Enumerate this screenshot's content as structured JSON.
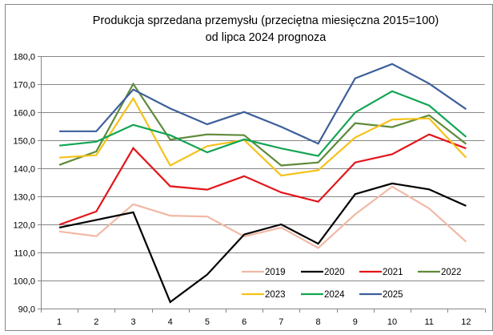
{
  "chart_data": {
    "type": "line",
    "title": "Produkcja sprzedana przemysłu (przeciętna miesięczna 2015=100)",
    "subtitle": "od lipca 2024 prognoza",
    "xlabel": "",
    "ylabel": "",
    "categories": [
      "1",
      "2",
      "3",
      "4",
      "5",
      "6",
      "7",
      "8",
      "9",
      "10",
      "11",
      "12"
    ],
    "ylim": [
      90,
      180
    ],
    "yticks": [
      "90,0",
      "100,0",
      "110,0",
      "120,0",
      "130,0",
      "140,0",
      "150,0",
      "160,0",
      "170,0",
      "180,0"
    ],
    "ytick_values": [
      90,
      100,
      110,
      120,
      130,
      140,
      150,
      160,
      170,
      180
    ],
    "grid": true,
    "legend_placement": "bottom-right",
    "series": [
      {
        "name": "2019",
        "color": "#f0b9a6",
        "values": [
          117.5,
          115.8,
          127.2,
          123.1,
          122.8,
          115.7,
          118.9,
          111.6,
          123.6,
          133.5,
          125.7,
          113.8
        ]
      },
      {
        "name": "2020",
        "color": "#000000",
        "values": [
          118.9,
          121.6,
          124.3,
          92.3,
          102.1,
          116.4,
          120.0,
          113.1,
          130.8,
          134.6,
          132.5,
          126.6
        ]
      },
      {
        "name": "2021",
        "color": "#e3151a",
        "values": [
          119.9,
          124.6,
          147.2,
          133.6,
          132.4,
          137.2,
          131.4,
          128.1,
          142.1,
          145.0,
          152.1,
          147.1
        ]
      },
      {
        "name": "2022",
        "color": "#5f8a3a",
        "values": [
          141.2,
          146.0,
          170.1,
          150.2,
          152.1,
          151.8,
          141.0,
          142.1,
          156.1,
          154.7,
          158.9,
          148.7
        ]
      },
      {
        "name": "2023",
        "color": "#f5c21b",
        "values": [
          143.8,
          144.7,
          164.9,
          141.0,
          147.9,
          150.1,
          137.4,
          139.3,
          151.0,
          157.4,
          157.8,
          143.8
        ]
      },
      {
        "name": "2024",
        "color": "#13a554",
        "values": [
          148.1,
          149.5,
          155.5,
          151.8,
          145.7,
          150.3,
          147.1,
          144.4,
          159.9,
          167.5,
          162.4,
          151.2
        ]
      },
      {
        "name": "2025",
        "color": "#3d5f9a",
        "values": [
          153.2,
          153.2,
          168.1,
          161.3,
          155.7,
          160.1,
          154.8,
          148.8,
          172.1,
          177.2,
          170.2,
          161.1
        ]
      }
    ]
  },
  "colors": {
    "grid": "#868686",
    "border": "#868686",
    "background": "#ffffff"
  }
}
